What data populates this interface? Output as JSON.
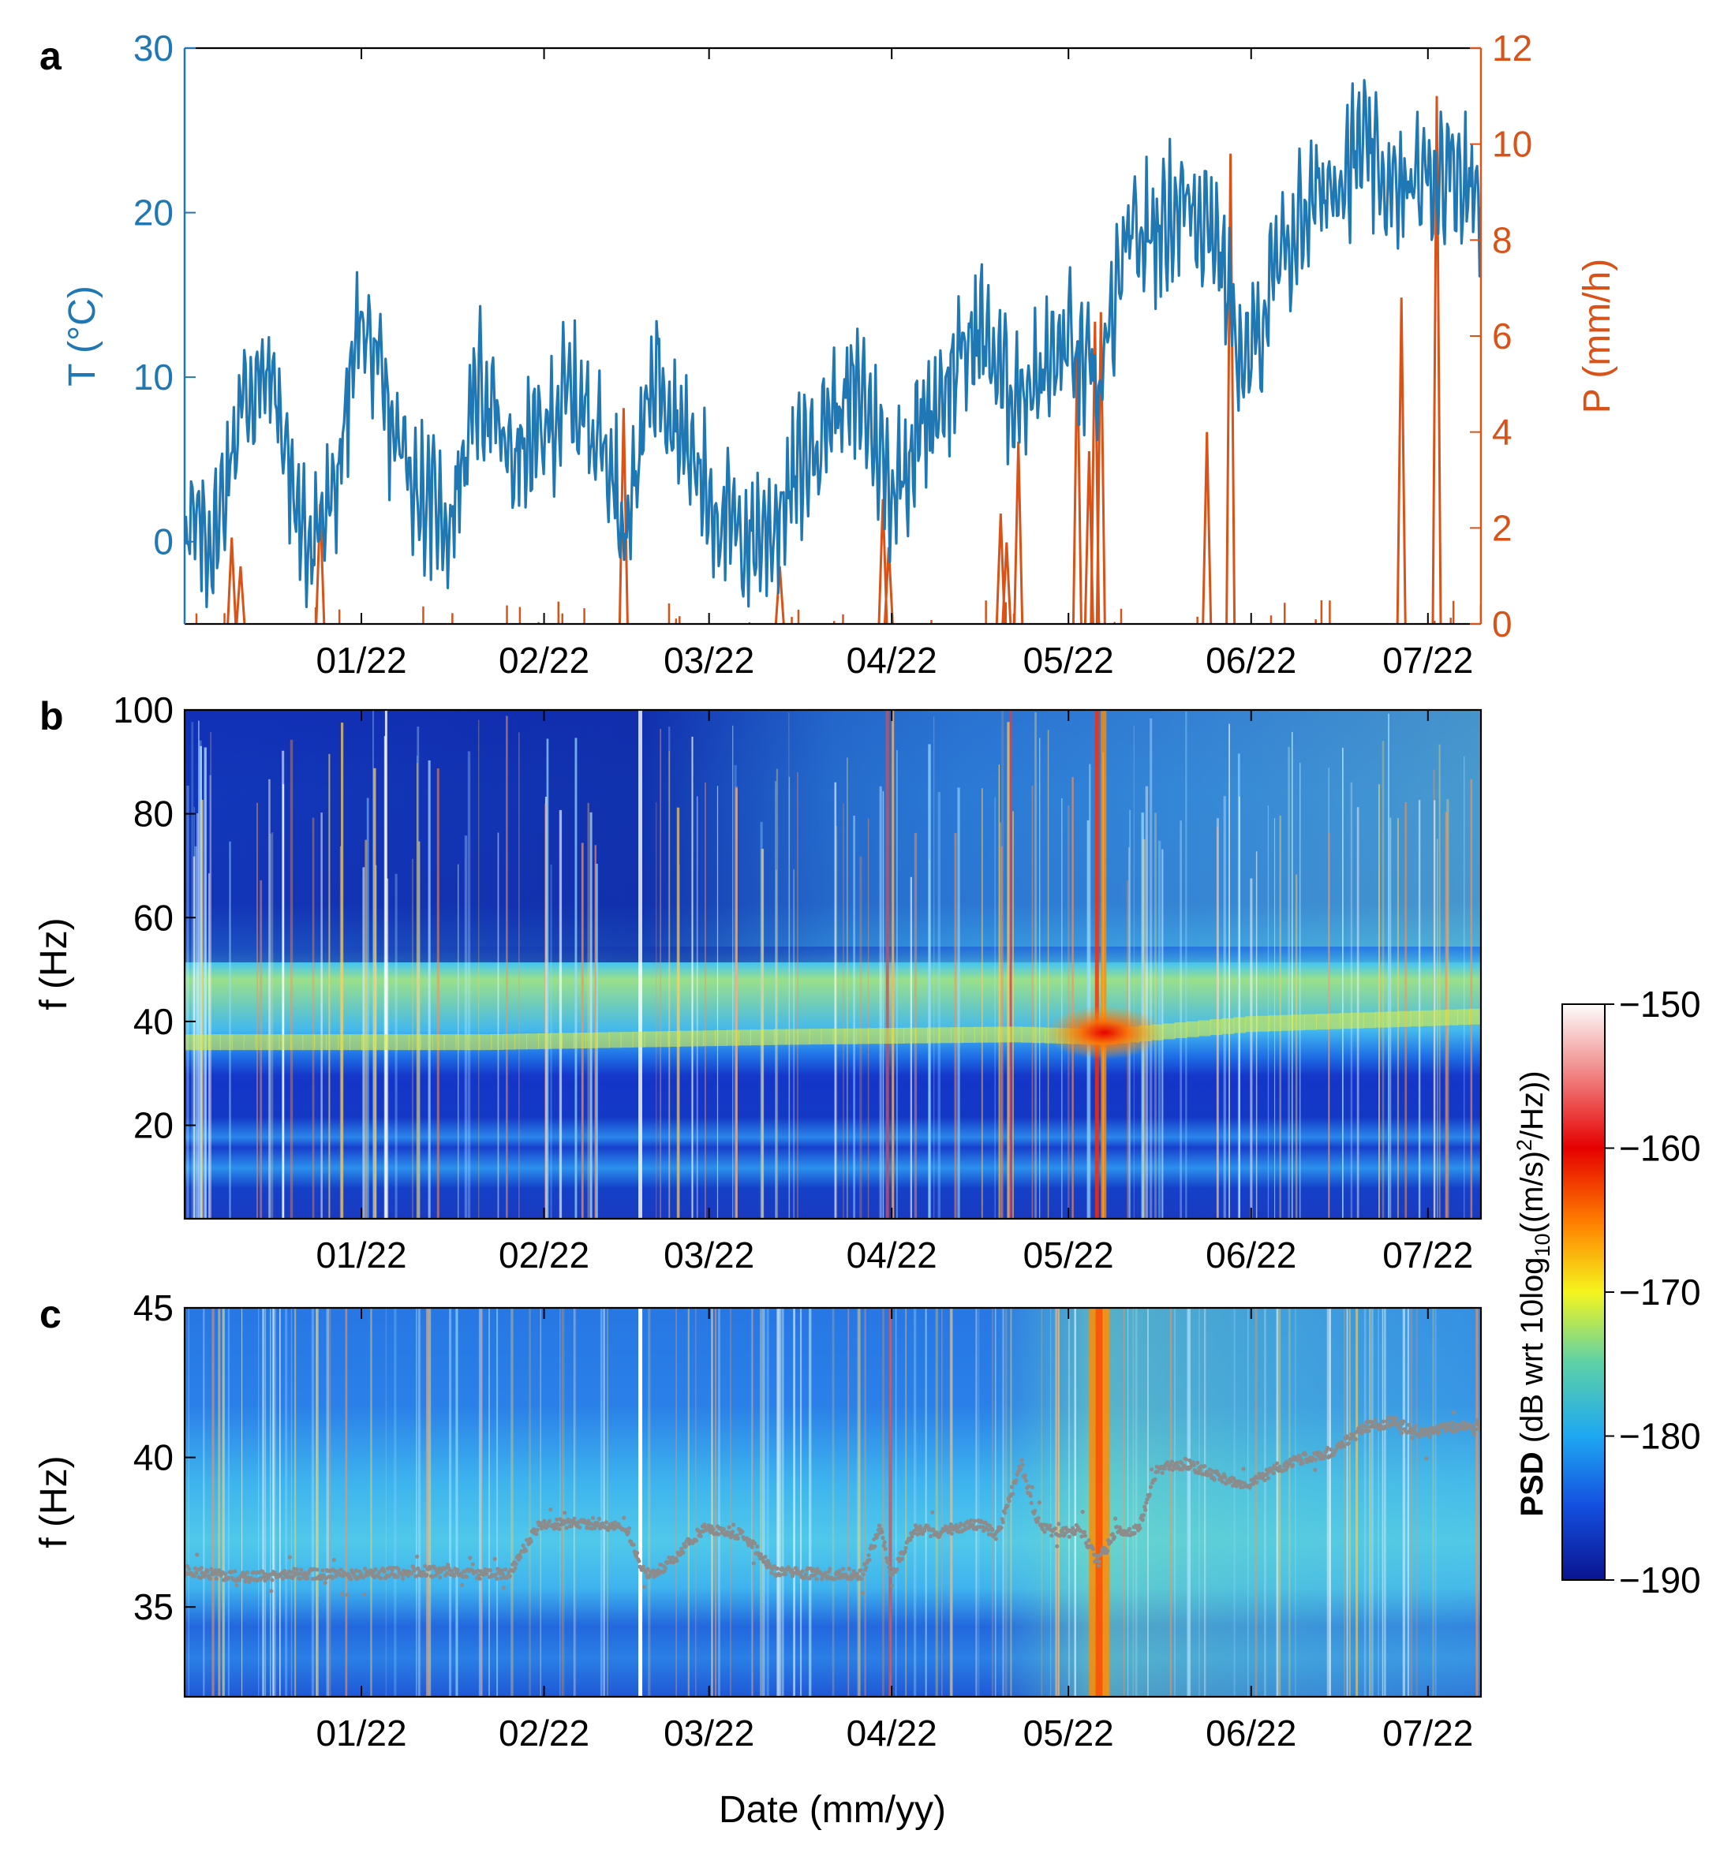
{
  "figure": {
    "xlabel": "Date (mm/yy)",
    "month_ticks": [
      "01/22",
      "02/22",
      "03/22",
      "04/22",
      "05/22",
      "06/22",
      "07/22"
    ],
    "x_domain_days": [
      0,
      220
    ],
    "month_tick_days": [
      30,
      61,
      89,
      120,
      150,
      181,
      211
    ],
    "colors": {
      "temperature": "#1f77b4",
      "precip": "#d95319",
      "peak": "#8c8c8c"
    }
  },
  "panels": {
    "a": {
      "label": "a"
    },
    "b": {
      "label": "b"
    },
    "c": {
      "label": "c"
    }
  },
  "colorbar": {
    "title_bold": "PSD",
    "title_rest": " (dB wrt 10log",
    "title_sub": "10",
    "title_end": "((m/s)",
    "title_sup": "2",
    "title_tail": "/Hz))",
    "ticks": [
      "−150",
      "−160",
      "−170",
      "−180",
      "−190"
    ],
    "range": [
      -190,
      -150
    ]
  },
  "chart_data": [
    {
      "panel": "a",
      "type": "line",
      "title": "",
      "xlabel": "",
      "ylabel": "T (°C)",
      "ylabel_right": "P (mm/h)",
      "ylim": [
        -5,
        30
      ],
      "ylim_right": [
        0,
        12
      ],
      "yticks": [
        "0",
        "10",
        "20",
        "30"
      ],
      "yticks_right": [
        "0",
        "2",
        "4",
        "6",
        "8",
        "10",
        "12"
      ],
      "series": [
        {
          "name": "Temperature",
          "axis": "left",
          "day": [
            0,
            5,
            10,
            15,
            20,
            25,
            30,
            35,
            40,
            45,
            50,
            55,
            60,
            65,
            70,
            75,
            80,
            85,
            90,
            95,
            100,
            105,
            110,
            115,
            120,
            125,
            130,
            135,
            140,
            145,
            150,
            155,
            160,
            165,
            170,
            175,
            180,
            185,
            190,
            195,
            200,
            205,
            210,
            215,
            220
          ],
          "values": [
            1,
            0,
            9,
            10,
            0,
            2,
            14,
            7,
            3,
            1,
            10,
            5,
            6,
            9,
            7,
            1,
            11,
            6,
            2,
            0,
            1,
            5,
            8,
            9,
            3,
            7,
            10,
            13,
            9,
            10,
            12,
            9,
            18,
            19,
            21,
            19,
            10,
            16,
            20,
            22,
            24,
            21,
            22,
            23,
            21
          ]
        },
        {
          "name": "Precipitation",
          "axis": "right",
          "events": [
            {
              "day": 8,
              "p": 1.8
            },
            {
              "day": 9.5,
              "p": 1.2
            },
            {
              "day": 23,
              "p": 2.5
            },
            {
              "day": 74.5,
              "p": 4.5
            },
            {
              "day": 101,
              "p": 1.2
            },
            {
              "day": 118.5,
              "p": 2.6
            },
            {
              "day": 119.5,
              "p": 1.6
            },
            {
              "day": 138.5,
              "p": 2.3
            },
            {
              "day": 139.5,
              "p": 1.7
            },
            {
              "day": 141.5,
              "p": 3.8
            },
            {
              "day": 151.5,
              "p": 5.9
            },
            {
              "day": 153.5,
              "p": 3.6
            },
            {
              "day": 154.5,
              "p": 6.3
            },
            {
              "day": 155.5,
              "p": 6.5
            },
            {
              "day": 173.5,
              "p": 4.0
            },
            {
              "day": 177.5,
              "p": 9.8
            },
            {
              "day": 206.5,
              "p": 6.8
            },
            {
              "day": 212.5,
              "p": 11.0
            }
          ]
        }
      ]
    },
    {
      "panel": "b",
      "type": "heatmap",
      "title": "",
      "xlabel": "",
      "ylabel": "f (Hz)",
      "ylim": [
        2,
        100
      ],
      "yticks": [
        "20",
        "40",
        "60",
        "80",
        "100"
      ],
      "band_center_hz_day": [
        0,
        50,
        100,
        140,
        155,
        180,
        220
      ],
      "band_center_hz": [
        36,
        36,
        37,
        37.5,
        37,
        39.5,
        41
      ],
      "strong_event_days": [
        154.5,
        155.5
      ]
    },
    {
      "panel": "c",
      "type": "heatmap",
      "title": "",
      "xlabel": "",
      "ylabel": "f (Hz)",
      "ylim": [
        32,
        45
      ],
      "yticks": [
        "35",
        "40",
        "45"
      ],
      "peak_frequency": {
        "name": "Tracked peak",
        "day": [
          0,
          10,
          20,
          30,
          40,
          50,
          55,
          60,
          65,
          70,
          75,
          78,
          80,
          88,
          90,
          95,
          100,
          108,
          115,
          118,
          120,
          124,
          128,
          135,
          138,
          142,
          145,
          150,
          152,
          155,
          158,
          162,
          165,
          170,
          175,
          180,
          185,
          190,
          195,
          200,
          205,
          210,
          215,
          220
        ],
        "values": [
          36.2,
          36,
          36.1,
          36.1,
          36.2,
          36.1,
          36.1,
          37.7,
          37.8,
          37.8,
          37.6,
          36.1,
          36.1,
          37.6,
          37.6,
          37.4,
          36.2,
          36.1,
          36.1,
          37.6,
          36.1,
          37.6,
          37.5,
          37.8,
          37.4,
          39.8,
          37.6,
          37.5,
          37.6,
          36.5,
          37.5,
          37.6,
          39.6,
          39.8,
          39.4,
          39.0,
          39.6,
          40.0,
          40.2,
          41.0,
          41.2,
          40.8,
          41.0,
          41.1
        ]
      }
    }
  ]
}
